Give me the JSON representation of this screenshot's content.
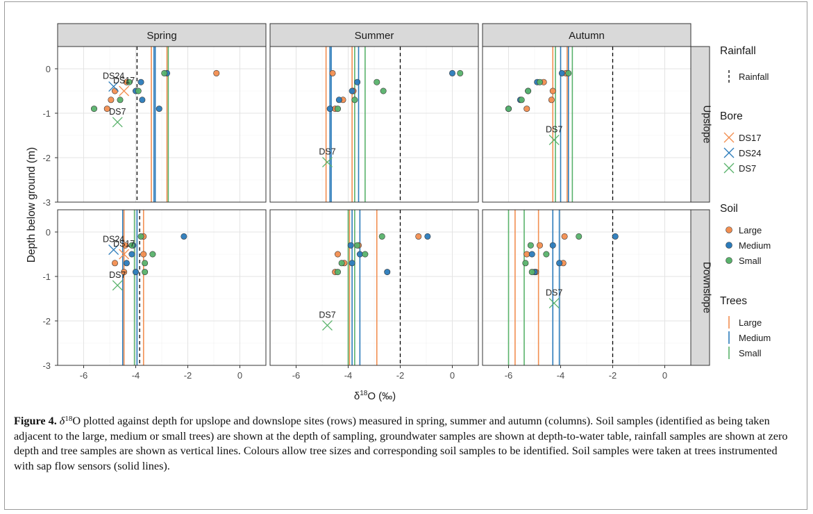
{
  "figure": {
    "label": "Figure 4.",
    "caption_pre": "δ",
    "caption_sup": "18",
    "caption_text": "O plotted against depth for upslope and downslope sites (rows) measured in spring, summer and autumn (columns). Soil samples (identified as being taken adjacent to the large, medium or small trees) are shown at the depth of sampling, groundwater samples are shown at depth-to-water table, rainfall samples are shown at zero depth and tree samples are shown as vertical lines. Colours allow tree sizes and corresponding soil samples to be identified. Soil samples were taken at trees instrumented with sap flow sensors (solid lines)."
  },
  "colors": {
    "Large": "#f28e50",
    "Medium": "#2b7bba",
    "Small": "#59b26b",
    "DS17": "#f28e50",
    "DS24": "#2b7bba",
    "DS7": "#59b26b",
    "rainfall": "#000000"
  },
  "chart_data": {
    "type": "scatter",
    "xlabel": {
      "pre": "δ",
      "sup": "18",
      "post": "O (‰)"
    },
    "ylabel": "Depth below ground (m)",
    "xlim": [
      -7,
      1
    ],
    "ylim": [
      -3,
      0.5
    ],
    "xticks": [
      -6,
      -4,
      -2,
      0
    ],
    "yticks": [
      0,
      -1,
      -2,
      -3
    ],
    "columns": [
      "Spring",
      "Summer",
      "Autumn"
    ],
    "rows": [
      "Upslope",
      "Downslope"
    ],
    "legend": {
      "rainfall_title": "Rainfall",
      "rainfall_items": [
        "Rainfall"
      ],
      "bore_title": "Bore",
      "bore_items": [
        "DS17",
        "DS24",
        "DS7"
      ],
      "soil_title": "Soil",
      "soil_items": [
        "Large",
        "Medium",
        "Small"
      ],
      "trees_title": "Trees",
      "trees_items": [
        "Large",
        "Medium",
        "Small"
      ]
    },
    "panels": [
      {
        "row": "Upslope",
        "column": "Spring",
        "rainfall": -3.95,
        "trees": [
          {
            "size": "Large",
            "x": -3.4
          },
          {
            "size": "Large",
            "x": -2.8
          },
          {
            "size": "Medium",
            "x": -3.3
          },
          {
            "size": "Medium",
            "x": -3.25
          },
          {
            "size": "Small",
            "x": -2.75
          }
        ],
        "bores": [
          {
            "name": "DS24",
            "x": -4.85,
            "y": -0.4,
            "label": "DS24"
          },
          {
            "name": "DS17",
            "x": -4.45,
            "y": -0.5,
            "label": "DS17"
          },
          {
            "name": "DS7",
            "x": -4.7,
            "y": -1.2,
            "label": "DS7"
          }
        ],
        "soil": [
          {
            "size": "Large",
            "x": -0.9,
            "y": -0.1
          },
          {
            "size": "Large",
            "x": -4.35,
            "y": -0.3
          },
          {
            "size": "Large",
            "x": -4.8,
            "y": -0.5
          },
          {
            "size": "Large",
            "x": -4.95,
            "y": -0.7
          },
          {
            "size": "Large",
            "x": -5.1,
            "y": -0.9
          },
          {
            "size": "Medium",
            "x": -2.8,
            "y": -0.1
          },
          {
            "size": "Medium",
            "x": -3.8,
            "y": -0.3
          },
          {
            "size": "Medium",
            "x": -4.0,
            "y": -0.5
          },
          {
            "size": "Medium",
            "x": -3.75,
            "y": -0.7
          },
          {
            "size": "Medium",
            "x": -3.1,
            "y": -0.9
          },
          {
            "size": "Small",
            "x": -2.9,
            "y": -0.1
          },
          {
            "size": "Small",
            "x": -4.25,
            "y": -0.3
          },
          {
            "size": "Small",
            "x": -3.9,
            "y": -0.5
          },
          {
            "size": "Small",
            "x": -4.6,
            "y": -0.7
          },
          {
            "size": "Small",
            "x": -5.6,
            "y": -0.9
          }
        ]
      },
      {
        "row": "Upslope",
        "column": "Summer",
        "rainfall": -2.0,
        "trees": [
          {
            "size": "Large",
            "x": -4.85
          },
          {
            "size": "Large",
            "x": -3.85
          },
          {
            "size": "Medium",
            "x": -4.7
          },
          {
            "size": "Medium",
            "x": -4.65
          },
          {
            "size": "Medium",
            "x": -3.6
          },
          {
            "size": "Small",
            "x": -3.75
          },
          {
            "size": "Small",
            "x": -3.35
          }
        ],
        "bores": [
          {
            "name": "DS7",
            "x": -4.8,
            "y": -2.1,
            "label": "DS7"
          }
        ],
        "soil": [
          {
            "size": "Large",
            "x": -4.6,
            "y": -0.1
          },
          {
            "size": "Large",
            "x": -4.2,
            "y": -0.7
          },
          {
            "size": "Large",
            "x": -3.8,
            "y": -0.5
          },
          {
            "size": "Large",
            "x": -4.5,
            "y": -0.9
          },
          {
            "size": "Medium",
            "x": 0.0,
            "y": -0.1
          },
          {
            "size": "Medium",
            "x": -3.65,
            "y": -0.3
          },
          {
            "size": "Medium",
            "x": -3.85,
            "y": -0.5
          },
          {
            "size": "Medium",
            "x": -4.35,
            "y": -0.7
          },
          {
            "size": "Medium",
            "x": -4.7,
            "y": -0.9
          },
          {
            "size": "Small",
            "x": 0.3,
            "y": -0.1
          },
          {
            "size": "Small",
            "x": -2.9,
            "y": -0.3
          },
          {
            "size": "Small",
            "x": -2.65,
            "y": -0.5
          },
          {
            "size": "Small",
            "x": -3.75,
            "y": -0.7
          },
          {
            "size": "Small",
            "x": -4.4,
            "y": -0.9
          }
        ]
      },
      {
        "row": "Upslope",
        "column": "Autumn",
        "rainfall": -2.0,
        "trees": [
          {
            "size": "Large",
            "x": -4.3
          },
          {
            "size": "Large",
            "x": -3.75
          },
          {
            "size": "Medium",
            "x": -4.0
          },
          {
            "size": "Medium",
            "x": -3.7
          },
          {
            "size": "Small",
            "x": -4.2
          },
          {
            "size": "Small",
            "x": -3.55
          }
        ],
        "bores": [
          {
            "name": "DS7",
            "x": -4.25,
            "y": -1.6,
            "label": "DS7"
          }
        ],
        "soil": [
          {
            "size": "Large",
            "x": -3.8,
            "y": -0.1
          },
          {
            "size": "Large",
            "x": -4.65,
            "y": -0.3
          },
          {
            "size": "Large",
            "x": -4.3,
            "y": -0.5
          },
          {
            "size": "Large",
            "x": -4.35,
            "y": -0.7
          },
          {
            "size": "Large",
            "x": -5.3,
            "y": -0.9
          },
          {
            "size": "Medium",
            "x": -3.95,
            "y": -0.1
          },
          {
            "size": "Medium",
            "x": -4.9,
            "y": -0.3
          },
          {
            "size": "Medium",
            "x": -5.25,
            "y": -0.5
          },
          {
            "size": "Medium",
            "x": -5.55,
            "y": -0.7
          },
          {
            "size": "Medium",
            "x": -6.0,
            "y": -0.9
          },
          {
            "size": "Small",
            "x": -3.7,
            "y": -0.1
          },
          {
            "size": "Small",
            "x": -4.8,
            "y": -0.3
          },
          {
            "size": "Small",
            "x": -5.25,
            "y": -0.5
          },
          {
            "size": "Small",
            "x": -5.5,
            "y": -0.7
          },
          {
            "size": "Small",
            "x": -6.0,
            "y": -0.9
          }
        ]
      },
      {
        "row": "Downslope",
        "column": "Spring",
        "rainfall": -3.85,
        "trees": [
          {
            "size": "Large",
            "x": -4.45
          },
          {
            "size": "Large",
            "x": -3.7
          },
          {
            "size": "Medium",
            "x": -4.5
          },
          {
            "size": "Medium",
            "x": -3.95
          },
          {
            "size": "Small",
            "x": -4.05
          }
        ],
        "bores": [
          {
            "name": "DS24",
            "x": -4.85,
            "y": -0.4,
            "label": "DS24"
          },
          {
            "name": "DS17",
            "x": -4.45,
            "y": -0.5,
            "label": "DS17"
          },
          {
            "name": "DS7",
            "x": -4.7,
            "y": -1.2,
            "label": "DS7"
          }
        ],
        "soil": [
          {
            "size": "Large",
            "x": -3.7,
            "y": -0.1
          },
          {
            "size": "Large",
            "x": -4.4,
            "y": -0.3
          },
          {
            "size": "Large",
            "x": -3.7,
            "y": -0.5
          },
          {
            "size": "Large",
            "x": -4.8,
            "y": -0.7
          },
          {
            "size": "Large",
            "x": -4.45,
            "y": -0.9
          },
          {
            "size": "Medium",
            "x": -2.15,
            "y": -0.1
          },
          {
            "size": "Medium",
            "x": -4.1,
            "y": -0.3
          },
          {
            "size": "Medium",
            "x": -4.15,
            "y": -0.5
          },
          {
            "size": "Medium",
            "x": -4.35,
            "y": -0.7
          },
          {
            "size": "Medium",
            "x": -4.0,
            "y": -0.9
          },
          {
            "size": "Small",
            "x": -3.8,
            "y": -0.1
          },
          {
            "size": "Small",
            "x": -4.15,
            "y": -0.3
          },
          {
            "size": "Small",
            "x": -3.35,
            "y": -0.5
          },
          {
            "size": "Small",
            "x": -3.65,
            "y": -0.7
          },
          {
            "size": "Small",
            "x": -3.65,
            "y": -0.9
          }
        ]
      },
      {
        "row": "Downslope",
        "column": "Summer",
        "rainfall": -2.0,
        "trees": [
          {
            "size": "Large",
            "x": -3.95
          },
          {
            "size": "Large",
            "x": -2.9
          },
          {
            "size": "Medium",
            "x": -3.85
          },
          {
            "size": "Medium",
            "x": -3.55
          },
          {
            "size": "Small",
            "x": -4.0
          },
          {
            "size": "Small",
            "x": -3.75
          }
        ],
        "bores": [
          {
            "name": "DS7",
            "x": -4.8,
            "y": -2.1,
            "label": "DS7"
          }
        ],
        "soil": [
          {
            "size": "Large",
            "x": -1.3,
            "y": -0.1
          },
          {
            "size": "Large",
            "x": -3.6,
            "y": -0.3
          },
          {
            "size": "Large",
            "x": -4.4,
            "y": -0.5
          },
          {
            "size": "Large",
            "x": -4.15,
            "y": -0.7
          },
          {
            "size": "Large",
            "x": -4.5,
            "y": -0.9
          },
          {
            "size": "Medium",
            "x": -0.95,
            "y": -0.1
          },
          {
            "size": "Medium",
            "x": -3.9,
            "y": -0.3
          },
          {
            "size": "Medium",
            "x": -3.55,
            "y": -0.5
          },
          {
            "size": "Medium",
            "x": -3.85,
            "y": -0.7
          },
          {
            "size": "Medium",
            "x": -2.5,
            "y": -0.9
          },
          {
            "size": "Small",
            "x": -2.7,
            "y": -0.1
          },
          {
            "size": "Small",
            "x": -3.65,
            "y": -0.3
          },
          {
            "size": "Small",
            "x": -3.35,
            "y": -0.5
          },
          {
            "size": "Small",
            "x": -4.25,
            "y": -0.7
          },
          {
            "size": "Small",
            "x": -4.4,
            "y": -0.9
          }
        ]
      },
      {
        "row": "Downslope",
        "column": "Autumn",
        "rainfall": -2.0,
        "trees": [
          {
            "size": "Large",
            "x": -5.75
          },
          {
            "size": "Large",
            "x": -4.85
          },
          {
            "size": "Medium",
            "x": -4.3
          },
          {
            "size": "Medium",
            "x": -4.05
          },
          {
            "size": "Small",
            "x": -6.0
          },
          {
            "size": "Small",
            "x": -5.4
          }
        ],
        "bores": [
          {
            "name": "DS7",
            "x": -4.25,
            "y": -1.6,
            "label": "DS7"
          }
        ],
        "soil": [
          {
            "size": "Large",
            "x": -3.85,
            "y": -0.1
          },
          {
            "size": "Large",
            "x": -4.8,
            "y": -0.3
          },
          {
            "size": "Large",
            "x": -5.3,
            "y": -0.5
          },
          {
            "size": "Large",
            "x": -3.9,
            "y": -0.7
          },
          {
            "size": "Large",
            "x": -4.95,
            "y": -0.9
          },
          {
            "size": "Medium",
            "x": -1.9,
            "y": -0.1
          },
          {
            "size": "Medium",
            "x": -4.3,
            "y": -0.3
          },
          {
            "size": "Medium",
            "x": -5.1,
            "y": -0.5
          },
          {
            "size": "Medium",
            "x": -4.05,
            "y": -0.7
          },
          {
            "size": "Medium",
            "x": -5.0,
            "y": -0.9
          },
          {
            "size": "Small",
            "x": -3.3,
            "y": -0.1
          },
          {
            "size": "Small",
            "x": -5.15,
            "y": -0.3
          },
          {
            "size": "Small",
            "x": -4.55,
            "y": -0.5
          },
          {
            "size": "Small",
            "x": -5.35,
            "y": -0.7
          },
          {
            "size": "Small",
            "x": -5.1,
            "y": -0.9
          }
        ]
      }
    ]
  }
}
